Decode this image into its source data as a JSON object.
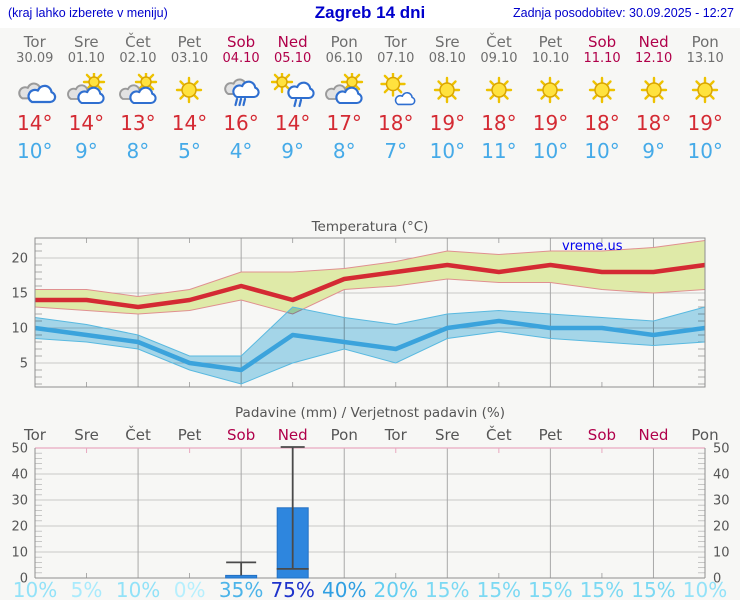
{
  "header": {
    "left_note": "(kraj lahko izberete v meniju)",
    "title": "Zagreb 14 dni",
    "updated": "Zadnja posodobitev: 30.09.2025 - 12:27"
  },
  "colors": {
    "header_blue": "#0000cc",
    "weekday_gray": "#6e6e6e",
    "weekend_red": "#b0004a",
    "tmax_red": "#d42a33",
    "tmin_blue": "#45aae8",
    "bar_blue": "#2e86de",
    "band_green": "#dfeaa8",
    "band_blue": "#a9dcf2",
    "grid_gray": "#c8c8c8",
    "grid_pink": "#e8a9c0"
  },
  "days": [
    {
      "name": "Tor",
      "date": "30.09",
      "weekend": false,
      "icon": "cloudy",
      "tmax": "14°",
      "tmin": "10°",
      "pop": "10%",
      "pop_color": "#92e2f8"
    },
    {
      "name": "Sre",
      "date": "01.10",
      "weekend": false,
      "icon": "partly-cloudy",
      "tmax": "14°",
      "tmin": "9°",
      "pop": "5%",
      "pop_color": "#a9eafc"
    },
    {
      "name": "Čet",
      "date": "02.10",
      "weekend": false,
      "icon": "partly-cloudy",
      "tmax": "13°",
      "tmin": "8°",
      "pop": "10%",
      "pop_color": "#92e2f8"
    },
    {
      "name": "Pet",
      "date": "03.10",
      "weekend": false,
      "icon": "sunny",
      "tmax": "14°",
      "tmin": "5°",
      "pop": "0%",
      "pop_color": "#b6effd"
    },
    {
      "name": "Sob",
      "date": "04.10",
      "weekend": true,
      "icon": "rain",
      "tmax": "16°",
      "tmin": "4°",
      "pop": "35%",
      "pop_color": "#4cb4e9"
    },
    {
      "name": "Ned",
      "date": "05.10",
      "weekend": true,
      "icon": "sun-rain",
      "tmax": "14°",
      "tmin": "9°",
      "pop": "75%",
      "pop_color": "#1e33cb"
    },
    {
      "name": "Pon",
      "date": "06.10",
      "weekend": false,
      "icon": "partly-cloudy",
      "tmax": "17°",
      "tmin": "8°",
      "pop": "40%",
      "pop_color": "#2f9fe2"
    },
    {
      "name": "Tor",
      "date": "07.10",
      "weekend": false,
      "icon": "mostly-sunny",
      "tmax": "18°",
      "tmin": "7°",
      "pop": "20%",
      "pop_color": "#63cef1"
    },
    {
      "name": "Sre",
      "date": "08.10",
      "weekend": false,
      "icon": "sunny",
      "tmax": "19°",
      "tmin": "10°",
      "pop": "15%",
      "pop_color": "#7cd9f3"
    },
    {
      "name": "Čet",
      "date": "09.10",
      "weekend": false,
      "icon": "sunny",
      "tmax": "18°",
      "tmin": "11°",
      "pop": "15%",
      "pop_color": "#7cd9f3"
    },
    {
      "name": "Pet",
      "date": "10.10",
      "weekend": false,
      "icon": "sunny",
      "tmax": "19°",
      "tmin": "10°",
      "pop": "15%",
      "pop_color": "#7cd9f3"
    },
    {
      "name": "Sob",
      "date": "11.10",
      "weekend": true,
      "icon": "sunny",
      "tmax": "18°",
      "tmin": "10°",
      "pop": "15%",
      "pop_color": "#7cd9f3"
    },
    {
      "name": "Ned",
      "date": "12.10",
      "weekend": true,
      "icon": "sunny",
      "tmax": "18°",
      "tmin": "9°",
      "pop": "15%",
      "pop_color": "#7cd9f3"
    },
    {
      "name": "Pon",
      "date": "13.10",
      "weekend": false,
      "icon": "sunny",
      "tmax": "19°",
      "tmin": "10°",
      "pop": "10%",
      "pop_color": "#92e2f8"
    }
  ],
  "chart_data": [
    {
      "type": "line",
      "title": "Temperatura (°C)",
      "watermark": "vreme.us",
      "ylim": [
        1.6,
        23.1
      ],
      "yticks": [
        5,
        10,
        15,
        20
      ],
      "x_days": 14,
      "gridline_day_indices": [
        2,
        4,
        6,
        8,
        10,
        12
      ],
      "series": [
        {
          "name": "max-temp",
          "color": "#d42a33",
          "band_color": "#dfeaa8",
          "band_edge": "#e09090",
          "values": [
            14,
            14,
            13,
            14,
            16,
            14,
            17,
            18,
            19,
            18,
            19,
            18,
            18,
            19
          ],
          "band_upper": [
            15.5,
            15.5,
            14.5,
            15.5,
            18,
            18,
            18.5,
            19.5,
            21,
            20.5,
            21,
            21,
            21.5,
            22.5
          ],
          "band_lower": [
            13,
            12.5,
            12,
            12.5,
            14,
            12,
            15.5,
            16,
            17,
            16.5,
            16.5,
            15.5,
            15,
            15.5
          ]
        },
        {
          "name": "min-temp",
          "color": "#3ba3dc",
          "band_color": "#a9dcf2",
          "band_edge": "#59b9e0",
          "values": [
            10,
            9,
            8,
            5,
            4,
            9,
            8,
            7,
            10,
            11,
            10,
            10,
            9,
            10
          ],
          "band_upper": [
            11.5,
            10.5,
            9,
            6,
            6,
            13,
            11.5,
            10.5,
            12,
            12.5,
            12,
            11.5,
            11,
            13
          ],
          "band_lower": [
            8.5,
            8,
            7,
            4,
            2,
            5,
            7,
            5,
            8.5,
            9.5,
            8.5,
            8,
            7.5,
            8
          ]
        }
      ]
    },
    {
      "type": "bar",
      "title": "Padavine (mm) / Verjetnost padavin (%)",
      "categories": [
        "Tor",
        "Sre",
        "Čet",
        "Pet",
        "Sob",
        "Ned",
        "Pon",
        "Tor",
        "Sre",
        "Čet",
        "Pet",
        "Sob",
        "Ned",
        "Pon"
      ],
      "weekend_indices": [
        4,
        5,
        11,
        12
      ],
      "ylim": [
        0,
        50
      ],
      "yticks": [
        0,
        10,
        20,
        30,
        40,
        50
      ],
      "values_mm": [
        0,
        0,
        0,
        0,
        1,
        27,
        0,
        0,
        0,
        0,
        0,
        0,
        0,
        0
      ],
      "whiskers": [
        {
          "day_index": 4,
          "bar_mm": 1,
          "whisker_high_mm": 6
        },
        {
          "day_index": 5,
          "bar_mm": 27,
          "whisker_low_mm": 3.5,
          "whisker_high_mm": 51
        }
      ],
      "pop_percent": [
        "10%",
        "5%",
        "10%",
        "0%",
        "35%",
        "75%",
        "40%",
        "20%",
        "15%",
        "15%",
        "15%",
        "15%",
        "15%",
        "10%"
      ],
      "gridline_day_indices": [
        2,
        4,
        6,
        8,
        10,
        12
      ]
    }
  ]
}
